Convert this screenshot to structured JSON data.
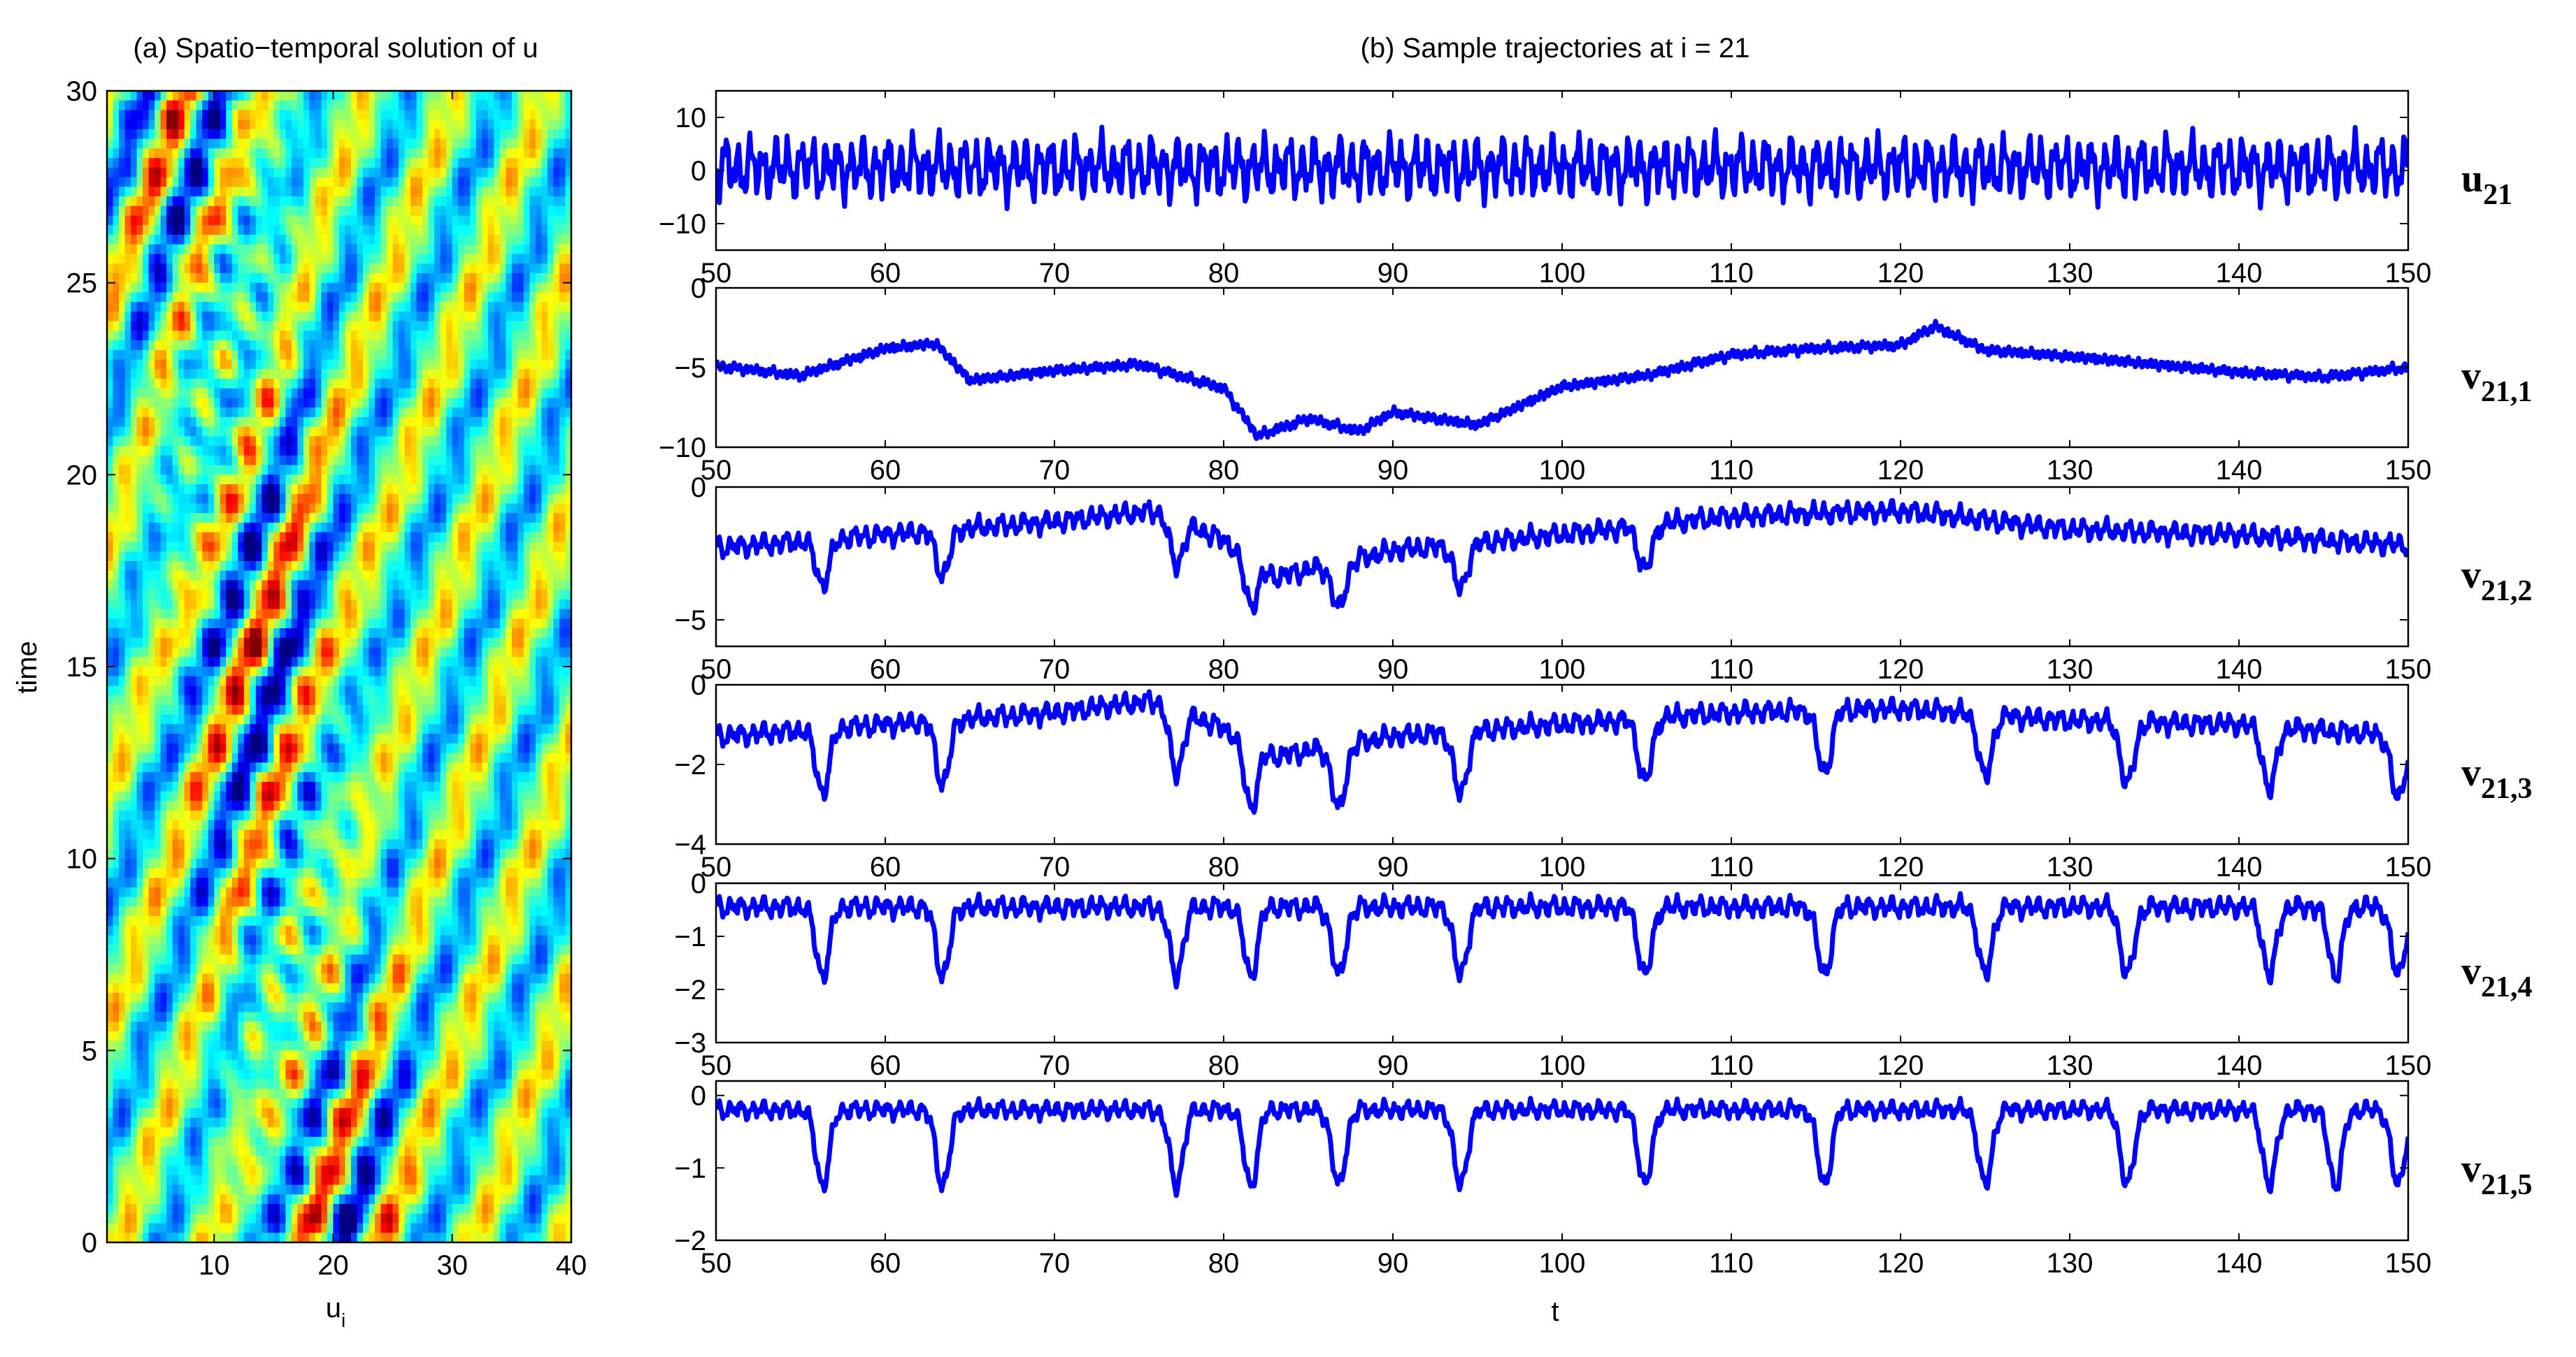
{
  "chart_data": [
    {
      "type": "heatmap",
      "title": "(a) Spatio−temporal solution of u",
      "xlabel": "u",
      "xlabel_sub": "i",
      "ylabel": "time",
      "xlim": [
        1,
        40
      ],
      "ylim": [
        0,
        30
      ],
      "xticks": [
        10,
        20,
        30,
        40
      ],
      "yticks": [
        0,
        5,
        10,
        15,
        20,
        25,
        30
      ],
      "colormap": "jet",
      "pattern": {
        "stripe_period_x": 7.5,
        "stripe_speed_x_per_time": 1.2,
        "front_center_x_at_t0": 20,
        "front_center_x_at_t30": 8,
        "front_halfwidth_x": 7
      }
    },
    {
      "type": "line",
      "title": "(b) Sample trajectories at i = 21",
      "xlabel": "t",
      "xlim": [
        50,
        150
      ],
      "xticks": [
        50,
        60,
        70,
        80,
        90,
        100,
        110,
        120,
        130,
        140,
        150
      ],
      "line_color": "#0000ff",
      "subplots": [
        {
          "label": "u",
          "label_sub": "21",
          "ylim": [
            -15,
            15
          ],
          "yticks": [
            -10,
            0,
            10
          ],
          "baseline": 0.5,
          "amplitude": 6.5,
          "dip_times": [],
          "dip_depth": 0,
          "spike_freq": 1.35,
          "drift_t": [
            50,
            150
          ],
          "drift_v": [
            0,
            0
          ]
        },
        {
          "label": "v",
          "label_sub": "21,1",
          "ylim": [
            -10,
            0
          ],
          "yticks": [
            -10,
            -5,
            0
          ],
          "baseline": 0,
          "amplitude": 0.35,
          "dip_times": [],
          "dip_depth": 0,
          "spike_freq": 3.0,
          "drift_t": [
            50,
            55,
            60,
            63,
            65,
            70,
            75,
            80,
            82,
            85,
            88,
            90,
            95,
            100,
            105,
            110,
            115,
            120,
            122,
            125,
            130,
            135,
            140,
            145,
            150
          ],
          "drift_v": [
            -4.9,
            -5.5,
            -3.8,
            -3.5,
            -5.8,
            -5.2,
            -4.8,
            -6.3,
            -9.3,
            -8.2,
            -9.0,
            -7.8,
            -8.6,
            -6.2,
            -5.5,
            -4.2,
            -3.8,
            -3.6,
            -2.4,
            -3.9,
            -4.3,
            -4.8,
            -5.3,
            -5.6,
            -5.0
          ]
        },
        {
          "label": "v",
          "label_sub": "21,2",
          "ylim": [
            -6,
            0
          ],
          "yticks": [
            -5,
            0
          ],
          "baseline": 0,
          "amplitude": 0.45,
          "dip_times": [
            56.3,
            63.4,
            77.2,
            81.6,
            86.8,
            94.0,
            104.9
          ],
          "dip_depth": 1.7,
          "spike_freq": 1.5,
          "drift_t": [
            50,
            60,
            70,
            76,
            80,
            83,
            90,
            100,
            110,
            120,
            130,
            140,
            150
          ],
          "drift_v": [
            -2.3,
            -1.8,
            -1.3,
            -0.9,
            -2.0,
            -3.4,
            -2.4,
            -1.8,
            -1.1,
            -0.9,
            -1.6,
            -1.8,
            -2.2
          ]
        },
        {
          "label": "v",
          "label_sub": "21,3",
          "ylim": [
            -4,
            0
          ],
          "yticks": [
            -4,
            -2,
            0
          ],
          "baseline": 0,
          "amplitude": 0.3,
          "dip_times": [
            56.3,
            63.4,
            77.2,
            81.6,
            86.8,
            94.0,
            104.9,
            115.5,
            125.0,
            133.4,
            141.8,
            149.4
          ],
          "dip_depth": 1.6,
          "spike_freq": 1.5,
          "drift_t": [
            50,
            60,
            70,
            76,
            80,
            83,
            90,
            100,
            110,
            120,
            130,
            140,
            150
          ],
          "drift_v": [
            -1.3,
            -1.0,
            -0.7,
            -0.4,
            -1.1,
            -1.8,
            -1.3,
            -1.0,
            -0.7,
            -0.6,
            -0.9,
            -1.0,
            -1.3
          ]
        },
        {
          "label": "v",
          "label_sub": "21,4",
          "ylim": [
            -3,
            0
          ],
          "yticks": [
            -3,
            -2,
            -1,
            0
          ],
          "baseline": -0.45,
          "amplitude": 0.22,
          "dip_times": [
            56.3,
            63.4,
            77.2,
            81.6,
            86.8,
            94.0,
            104.9,
            115.5,
            125.0,
            133.4,
            141.8,
            145.7,
            149.4
          ],
          "dip_depth": 1.3,
          "spike_freq": 1.5,
          "drift_t": [
            50,
            150
          ],
          "drift_v": [
            0,
            0
          ]
        },
        {
          "label": "v",
          "label_sub": "21,5",
          "ylim": [
            -2,
            0.2
          ],
          "yticks": [
            -2,
            -1,
            0
          ],
          "baseline": -0.2,
          "amplitude": 0.14,
          "dip_times": [
            56.3,
            63.4,
            77.2,
            81.6,
            86.8,
            94.0,
            104.9,
            115.5,
            125.0,
            133.4,
            141.8,
            145.7,
            149.4
          ],
          "dip_depth": 1.05,
          "spike_freq": 1.5,
          "drift_t": [
            50,
            150
          ],
          "drift_v": [
            0,
            0
          ]
        }
      ]
    }
  ]
}
